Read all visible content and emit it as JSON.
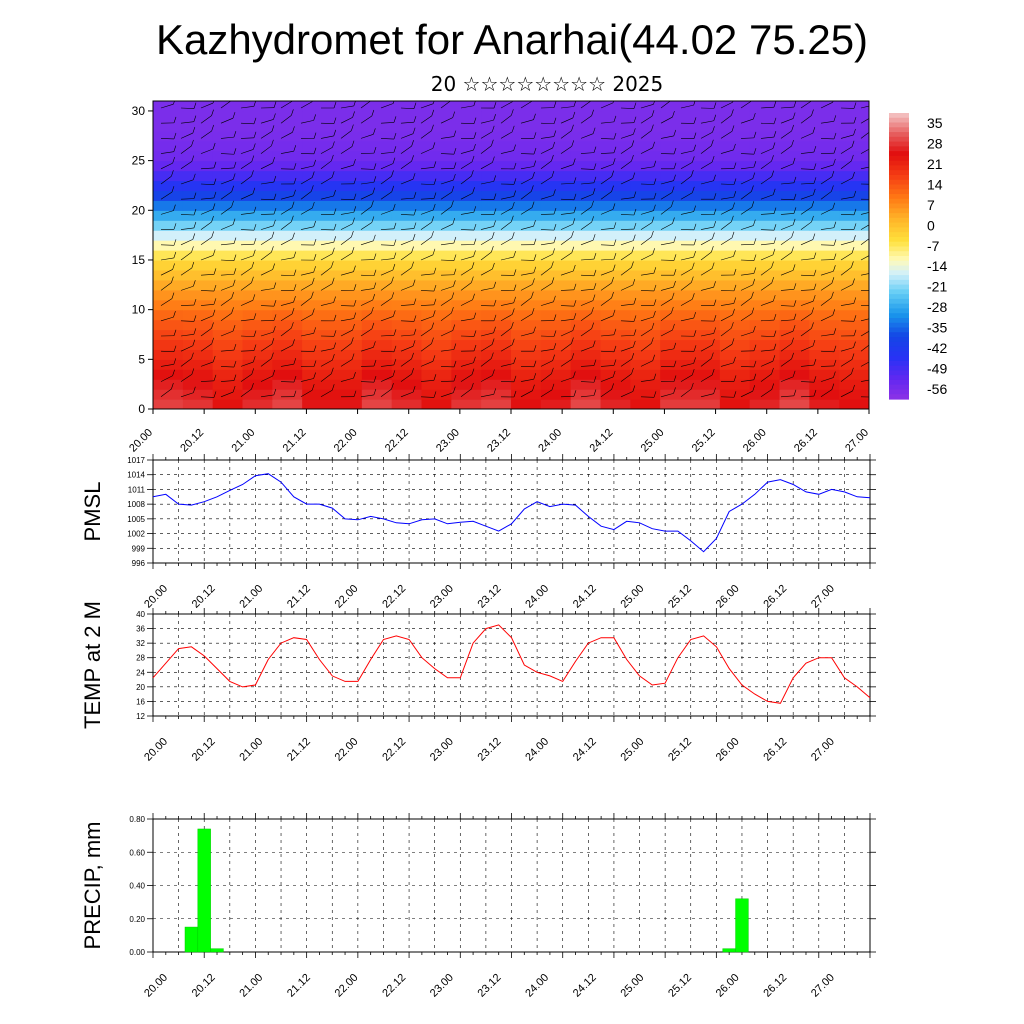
{
  "title": "Kazhydromet for Anarhai(44.02 75.25)",
  "subtitle": "20 ☆☆☆☆☆☆☆☆ 2025",
  "time_ticks": [
    "20.00",
    "20.12",
    "21.00",
    "21.12",
    "22.00",
    "22.12",
    "23.00",
    "23.12",
    "24.00",
    "24.12",
    "25.00",
    "25.12",
    "26.00",
    "26.12",
    "27.00"
  ],
  "chart_data": [
    {
      "type": "heatmap",
      "title": "",
      "xlabel": "",
      "ylabel": "",
      "x_range": [
        0,
        168
      ],
      "ylim": [
        0,
        31
      ],
      "y_ticks": [
        0,
        5,
        10,
        15,
        20,
        25,
        30
      ],
      "colorbar": {
        "labels": [
          "35",
          "28",
          "21",
          "14",
          "7",
          "0",
          "-7",
          "-14",
          "-21",
          "-28",
          "-35",
          "-42",
          "-49",
          "-56"
        ],
        "range": [
          -63,
          42
        ]
      },
      "temperature_profile_by_level": [
        {
          "y": 0,
          "value": 30
        },
        {
          "y": 3,
          "value": 26
        },
        {
          "y": 6,
          "value": 20
        },
        {
          "y": 9,
          "value": 14
        },
        {
          "y": 12,
          "value": 6
        },
        {
          "y": 15,
          "value": -4
        },
        {
          "y": 17,
          "value": -14
        },
        {
          "y": 19,
          "value": -26
        },
        {
          "y": 21,
          "value": -38
        },
        {
          "y": 23,
          "value": -50
        },
        {
          "y": 25,
          "value": -58
        },
        {
          "y": 28,
          "value": -60
        },
        {
          "y": 31,
          "value": -60
        }
      ],
      "overlay": "wind barbs"
    },
    {
      "type": "line",
      "ylabel": "PMSL",
      "ylim": [
        996,
        1017
      ],
      "y_ticks": [
        996,
        999,
        1002,
        1005,
        1008,
        1011,
        1014,
        1017
      ],
      "color": "#0000ff",
      "x": [
        0,
        3,
        6,
        9,
        12,
        15,
        18,
        21,
        24,
        27,
        30,
        33,
        36,
        39,
        42,
        45,
        48,
        51,
        54,
        57,
        60,
        63,
        66,
        69,
        72,
        75,
        78,
        81,
        84,
        87,
        90,
        93,
        96,
        99,
        102,
        105,
        108,
        111,
        114,
        117,
        120,
        123,
        126,
        129,
        132,
        135,
        138,
        141,
        144,
        147,
        150,
        153,
        156,
        159,
        162,
        165,
        168
      ],
      "values": [
        1009.5,
        1010,
        1008,
        1007.8,
        1008.5,
        1009.5,
        1010.8,
        1012,
        1013.8,
        1014.2,
        1012.5,
        1009.5,
        1008,
        1008,
        1007.2,
        1005,
        1004.8,
        1005.5,
        1005,
        1004.2,
        1004,
        1004.8,
        1005,
        1004,
        1004.3,
        1004.5,
        1003.5,
        1002.5,
        1004,
        1007,
        1008.5,
        1007.5,
        1008,
        1007.8,
        1005.5,
        1003.5,
        1002.8,
        1004.5,
        1004.2,
        1003,
        1002.5,
        1002.5,
        1000.5,
        998.3,
        1001,
        1006.5,
        1008,
        1010,
        1012.5,
        1013,
        1012,
        1010.5,
        1010,
        1011,
        1010.5,
        1009.5,
        1009.3
      ]
    },
    {
      "type": "line",
      "ylabel": "TEMP at 2 M",
      "ylim": [
        12,
        40
      ],
      "y_ticks": [
        12,
        16,
        20,
        24,
        28,
        32,
        36,
        40
      ],
      "color": "#ff0000",
      "x": [
        0,
        3,
        6,
        9,
        12,
        15,
        18,
        21,
        24,
        27,
        30,
        33,
        36,
        39,
        42,
        45,
        48,
        51,
        54,
        57,
        60,
        63,
        66,
        69,
        72,
        75,
        78,
        81,
        84,
        87,
        90,
        93,
        96,
        99,
        102,
        105,
        108,
        111,
        114,
        117,
        120,
        123,
        126,
        129,
        132,
        135,
        138,
        141,
        144,
        147,
        150,
        153,
        156,
        159,
        162,
        165,
        168
      ],
      "values": [
        22.5,
        26.5,
        30.5,
        31,
        28.5,
        25,
        21.5,
        20,
        20.5,
        27.5,
        32,
        33.5,
        33,
        27.5,
        23,
        21.5,
        21.5,
        27.5,
        33,
        34,
        33,
        28,
        25,
        22.5,
        22.5,
        32,
        36,
        37,
        33.5,
        26,
        24,
        23,
        21.5,
        27,
        32,
        33.5,
        33.5,
        27.5,
        23,
        20.5,
        21,
        28,
        33,
        34,
        31,
        25,
        20.5,
        18,
        16,
        15.5,
        22.5,
        26.5,
        28,
        28,
        22.5,
        20,
        17
      ]
    },
    {
      "type": "bar",
      "ylabel": "PRECIP, mm",
      "ylim": [
        0,
        0.8
      ],
      "y_ticks": [
        "0.00",
        "0.20",
        "0.40",
        "0.60",
        "0.80"
      ],
      "color": "#00ff00",
      "bars": [
        {
          "x": 9,
          "value": 0.15
        },
        {
          "x": 12,
          "value": 0.74
        },
        {
          "x": 15,
          "value": 0.02
        },
        {
          "x": 135,
          "value": 0.02
        },
        {
          "x": 138,
          "value": 0.32
        }
      ]
    }
  ]
}
